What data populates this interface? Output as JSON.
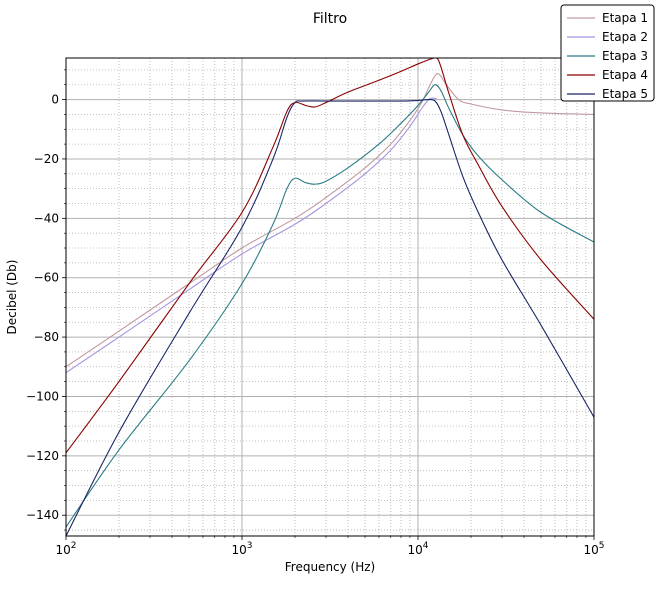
{
  "chart_data": {
    "type": "line",
    "title": "Filtro",
    "xlabel": "Frequency (Hz)",
    "ylabel": "Decibel (Db)",
    "xscale": "log",
    "xlim": [
      100,
      100000
    ],
    "ylim": [
      -147,
      14
    ],
    "x_ticks": [
      {
        "value": 100,
        "base": "10",
        "exp": "2"
      },
      {
        "value": 1000,
        "base": "10",
        "exp": "3"
      },
      {
        "value": 10000,
        "base": "10",
        "exp": "4"
      },
      {
        "value": 100000,
        "base": "10",
        "exp": "5"
      }
    ],
    "y_ticks": [
      {
        "value": 0,
        "label": "0"
      },
      {
        "value": -20,
        "label": "−20"
      },
      {
        "value": -40,
        "label": "−40"
      },
      {
        "value": -60,
        "label": "−60"
      },
      {
        "value": -80,
        "label": "−80"
      },
      {
        "value": -100,
        "label": "−100"
      },
      {
        "value": -120,
        "label": "−120"
      },
      {
        "value": -140,
        "label": "−140"
      }
    ],
    "grid": true,
    "minor_grid": true,
    "legend_position": "top-right",
    "series": [
      {
        "name": "Etapa 1",
        "color": "#c09aa0",
        "points": [
          [
            100,
            -90
          ],
          [
            200,
            -78
          ],
          [
            500,
            -62
          ],
          [
            1000,
            -50
          ],
          [
            2000,
            -40
          ],
          [
            3000,
            -33
          ],
          [
            5000,
            -23
          ],
          [
            7000,
            -15
          ],
          [
            9000,
            -7
          ],
          [
            10500,
            -1
          ],
          [
            11500,
            4
          ],
          [
            12500,
            8
          ],
          [
            13200,
            8.5
          ],
          [
            14500,
            5
          ],
          [
            17000,
            0
          ],
          [
            20000,
            -1.5
          ],
          [
            30000,
            -3.5
          ],
          [
            50000,
            -4.5
          ],
          [
            100000,
            -5
          ]
        ]
      },
      {
        "name": "Etapa 2",
        "color": "#a695e0",
        "points": [
          [
            100,
            -92
          ],
          [
            200,
            -80
          ],
          [
            500,
            -64
          ],
          [
            1000,
            -52
          ],
          [
            2000,
            -42
          ],
          [
            3000,
            -35
          ],
          [
            5000,
            -25
          ],
          [
            7000,
            -17
          ],
          [
            9000,
            -9
          ],
          [
            10500,
            -3
          ],
          [
            11500,
            0
          ],
          [
            12000,
            0.5
          ],
          [
            12800,
            0.3
          ]
        ]
      },
      {
        "name": "Etapa 3",
        "color": "#2c7d86",
        "points": [
          [
            100,
            -144
          ],
          [
            200,
            -118
          ],
          [
            500,
            -88
          ],
          [
            1000,
            -62
          ],
          [
            1500,
            -42
          ],
          [
            1800,
            -30
          ],
          [
            2000,
            -26.5
          ],
          [
            2300,
            -28
          ],
          [
            2600,
            -28.5
          ],
          [
            3000,
            -27.5
          ],
          [
            4000,
            -23
          ],
          [
            6000,
            -15
          ],
          [
            8000,
            -8
          ],
          [
            10000,
            -2
          ],
          [
            11500,
            2.5
          ],
          [
            12500,
            5
          ],
          [
            13500,
            3
          ],
          [
            15000,
            -3
          ],
          [
            18000,
            -12
          ],
          [
            22000,
            -19
          ],
          [
            30000,
            -27
          ],
          [
            50000,
            -38
          ],
          [
            100000,
            -48
          ]
        ]
      },
      {
        "name": "Etapa 4",
        "color": "#8b0000",
        "points": [
          [
            100,
            -119
          ],
          [
            200,
            -95
          ],
          [
            500,
            -62
          ],
          [
            1000,
            -38
          ],
          [
            1500,
            -16
          ],
          [
            1800,
            -4
          ],
          [
            2000,
            -1
          ],
          [
            2300,
            -2
          ],
          [
            2600,
            -2.5
          ],
          [
            3000,
            -1
          ],
          [
            4000,
            2.5
          ],
          [
            6000,
            6.5
          ],
          [
            8000,
            9.5
          ],
          [
            10000,
            12
          ],
          [
            12000,
            13.8
          ],
          [
            12800,
            14
          ],
          [
            13500,
            11
          ],
          [
            15000,
            2
          ],
          [
            18000,
            -12
          ],
          [
            22000,
            -22
          ],
          [
            30000,
            -36
          ],
          [
            50000,
            -54
          ],
          [
            100000,
            -74
          ]
        ]
      },
      {
        "name": "Etapa 5",
        "color": "#1a2566",
        "points": [
          [
            100,
            -147
          ],
          [
            200,
            -112
          ],
          [
            500,
            -72
          ],
          [
            1000,
            -43
          ],
          [
            1500,
            -20
          ],
          [
            1800,
            -6
          ],
          [
            2000,
            -1
          ],
          [
            2200,
            -0.5
          ],
          [
            3000,
            -0.5
          ],
          [
            5000,
            -0.5
          ],
          [
            8000,
            -0.5
          ],
          [
            10000,
            -0.3
          ],
          [
            11500,
            0
          ],
          [
            12500,
            -0.5
          ],
          [
            13500,
            -4
          ],
          [
            15000,
            -12
          ],
          [
            18000,
            -26
          ],
          [
            22000,
            -38
          ],
          [
            30000,
            -54
          ],
          [
            50000,
            -76
          ],
          [
            100000,
            -107
          ]
        ]
      }
    ]
  }
}
